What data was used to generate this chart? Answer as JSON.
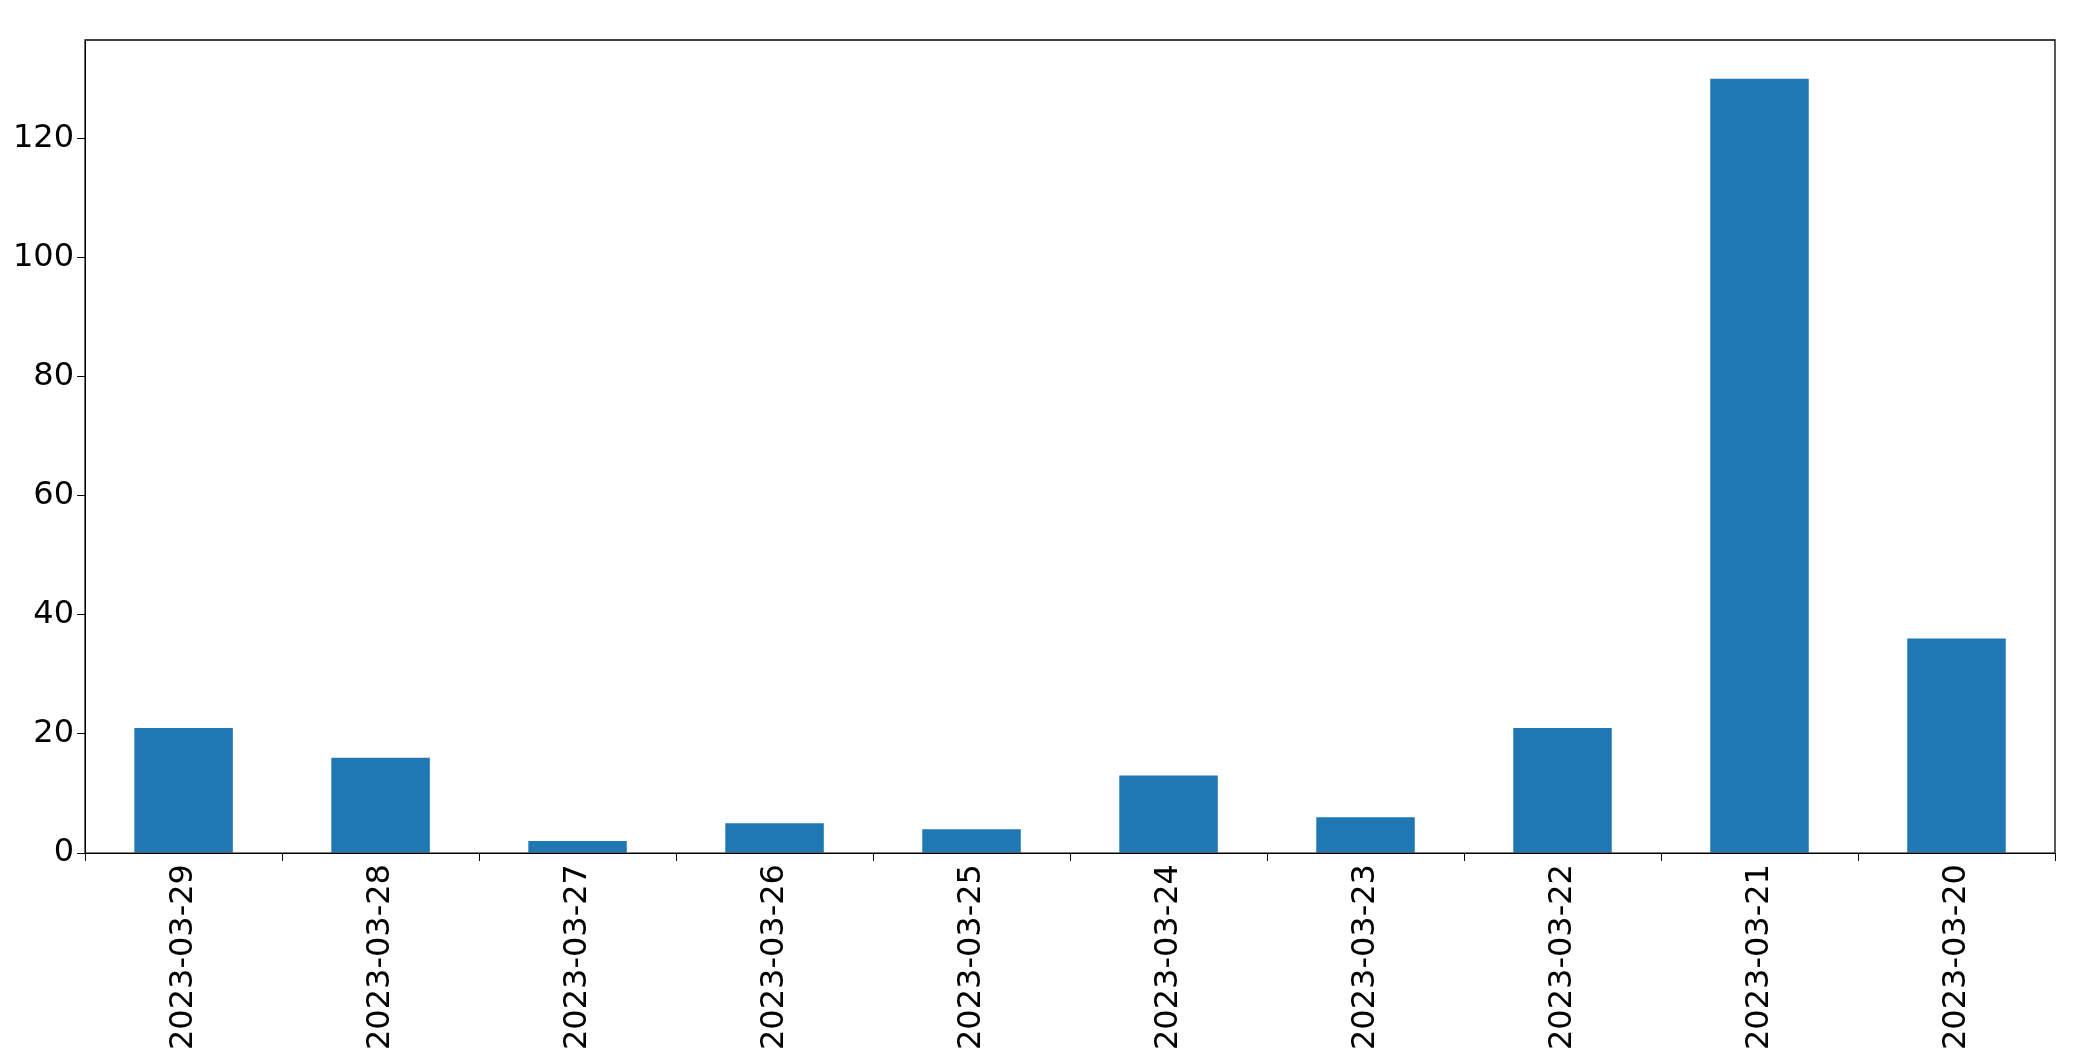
{
  "chart_data": {
    "type": "bar",
    "categories": [
      "2023-03-29",
      "2023-03-28",
      "2023-03-27",
      "2023-03-26",
      "2023-03-25",
      "2023-03-24",
      "2023-03-23",
      "2023-03-22",
      "2023-03-21",
      "2023-03-20"
    ],
    "values": [
      21,
      16,
      2,
      5,
      4,
      13,
      6,
      21,
      130,
      36
    ],
    "color": "#1f77b4",
    "ylim": [
      0,
      136.5
    ],
    "yticks": [
      0,
      20,
      40,
      60,
      80,
      100,
      120
    ]
  }
}
